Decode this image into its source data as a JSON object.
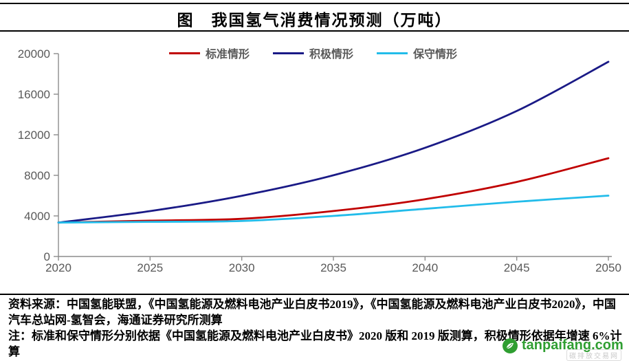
{
  "chart_data": {
    "type": "line",
    "title": "图　我国氢气消费情况预测（万吨）",
    "unit": "万吨",
    "categories": [
      2020,
      2025,
      2030,
      2035,
      2040,
      2045,
      2050
    ],
    "xlim": [
      2020,
      2050
    ],
    "ylim": [
      0,
      20000
    ],
    "xtick_labels": [
      "2020",
      "2025",
      "2030",
      "2035",
      "2040",
      "2045",
      "2050"
    ],
    "ytick_labels": [
      "0",
      "4000",
      "8000",
      "12000",
      "16000",
      "20000"
    ],
    "grid": false,
    "legend_position": "top-center",
    "axis_color": "#8c8c8c",
    "tick_label_color": "#595959",
    "series": [
      {
        "name": "标准情形",
        "color": "#C00000",
        "values": [
          3342,
          3530,
          3715,
          4480,
          5650,
          7350,
          9690
        ]
      },
      {
        "name": "积极情形",
        "color": "#1A1A86",
        "values": [
          3342,
          4472,
          5985,
          8009,
          10718,
          14344,
          19195
        ]
      },
      {
        "name": "保守情形",
        "color": "#22BCEA",
        "values": [
          3342,
          3420,
          3500,
          4000,
          4700,
          5400,
          6000
        ]
      }
    ]
  },
  "footer": {
    "source": "资料来源：中国氢能联盟，《中国氢能源及燃料电池产业白皮书2019》，《中国氢能源及燃料电池产业白皮书2020》，中国汽车总站网-氢智会，海通证券研究所测算",
    "note": "注：标准和保守情形分别依据《中国氢能源及燃料电池产业白皮书》2020 版和 2019 版测算，积极情形依据年增速 6%计算"
  },
  "watermark": {
    "site": "tanpaifang.com",
    "subtext": "碳排放交易网",
    "brand_color": "#2F9E31",
    "icon": "leaf-globe-icon"
  }
}
